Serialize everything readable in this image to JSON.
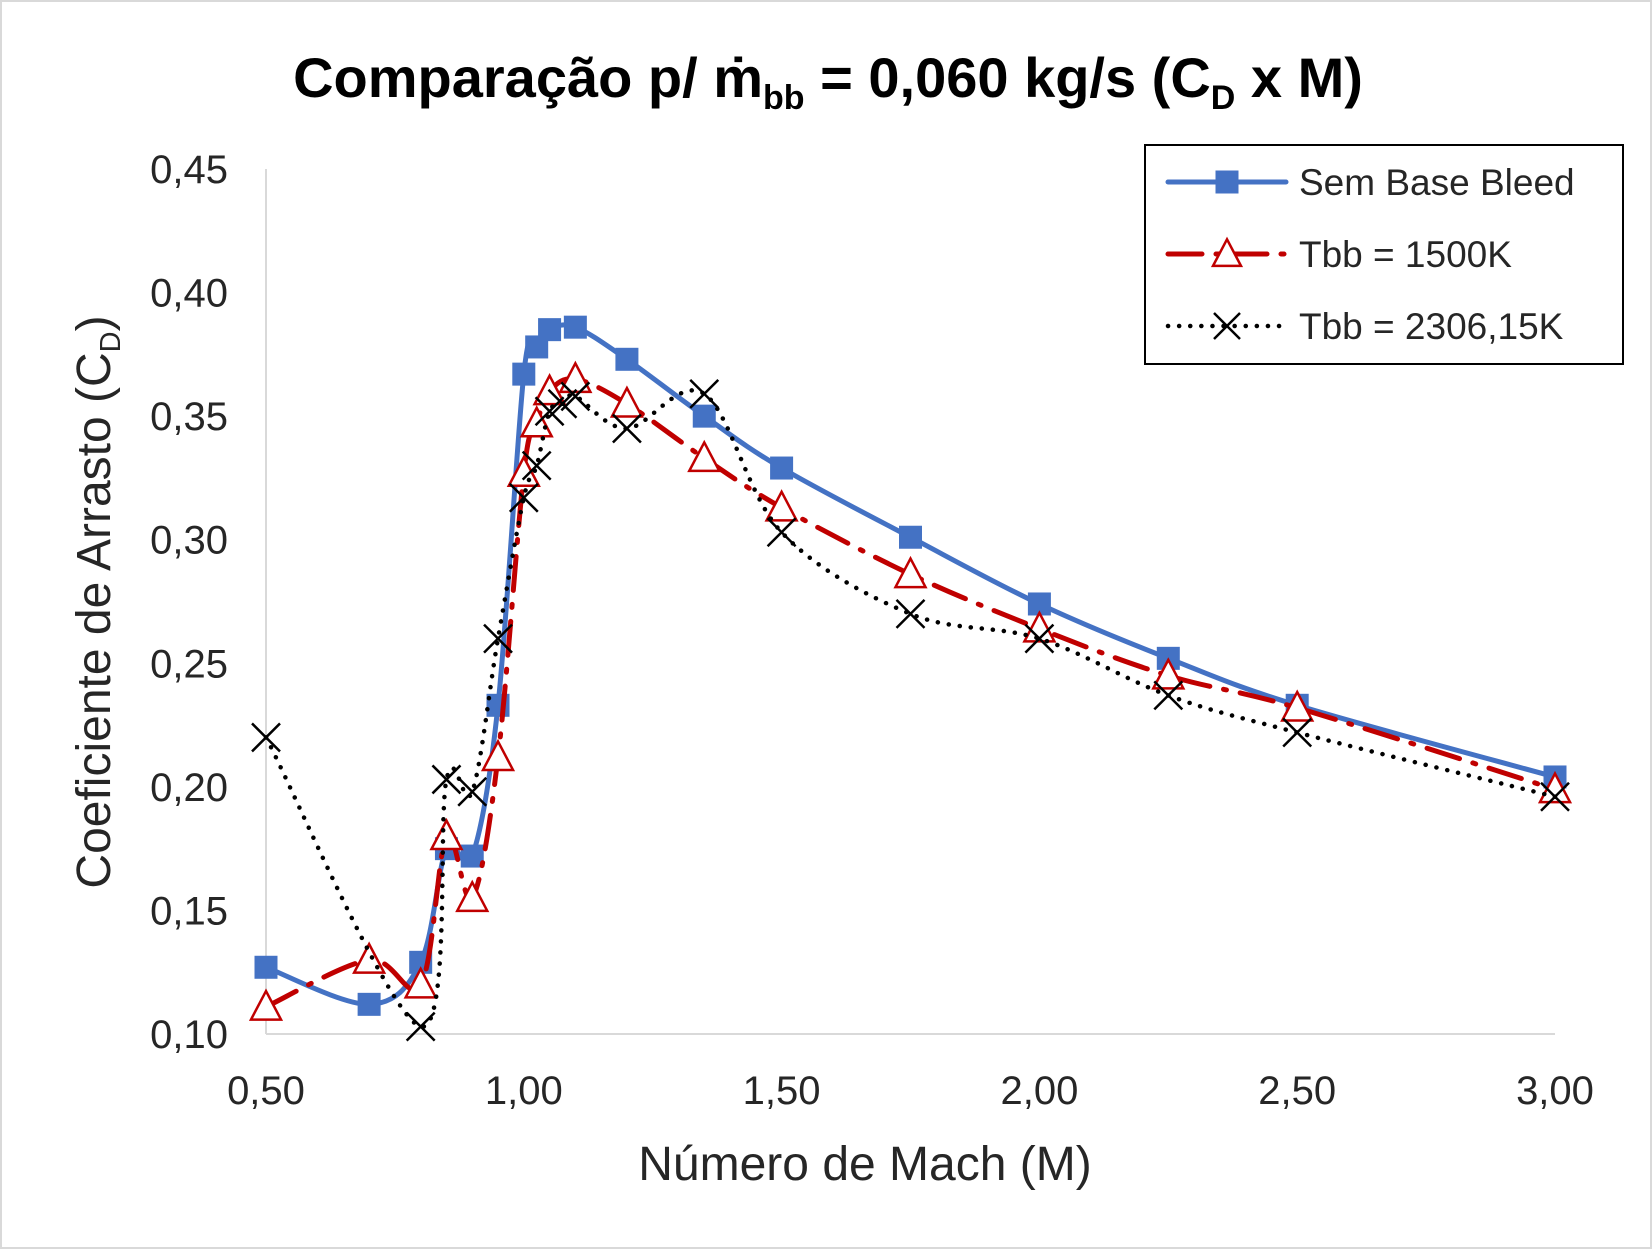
{
  "chart_data": {
    "type": "line",
    "title": {
      "prefix": "Comparação p/ ",
      "m_symbol": "ṁ",
      "m_sub": "bb",
      "middle": " = 0,060 kg/s (C",
      "c_sub": "D",
      "suffix": " x M)"
    },
    "xlabel": "Número de Mach (M)",
    "ylabel": {
      "main": "Coeficiente de Arrasto (C",
      "sub": "D",
      "end": ")"
    },
    "xlim": [
      0.5,
      3.0
    ],
    "ylim": [
      0.1,
      0.45
    ],
    "x_ticks": [
      0.5,
      1.0,
      1.5,
      2.0,
      2.5,
      3.0
    ],
    "x_tick_labels": [
      "0,50",
      "1,00",
      "1,50",
      "2,00",
      "2,50",
      "3,00"
    ],
    "y_ticks": [
      0.1,
      0.15,
      0.2,
      0.25,
      0.3,
      0.35,
      0.4,
      0.45
    ],
    "y_tick_labels": [
      "0,10",
      "0,15",
      "0,20",
      "0,25",
      "0,30",
      "0,35",
      "0,40",
      "0,45"
    ],
    "grid": false,
    "legend_position": "top-right",
    "series": [
      {
        "name": "Sem Base Bleed",
        "color": "#4472c4",
        "line_style": "solid",
        "marker": "square",
        "points": [
          [
            0.5,
            0.127
          ],
          [
            0.7,
            0.112
          ],
          [
            0.8,
            0.129
          ],
          [
            0.85,
            0.175
          ],
          [
            0.9,
            0.172
          ],
          [
            0.95,
            0.233
          ],
          [
            1.0,
            0.367
          ],
          [
            1.025,
            0.378
          ],
          [
            1.05,
            0.385
          ],
          [
            1.1,
            0.386
          ],
          [
            1.2,
            0.373
          ],
          [
            1.35,
            0.35
          ],
          [
            1.5,
            0.329
          ],
          [
            1.75,
            0.301
          ],
          [
            2.0,
            0.274
          ],
          [
            2.25,
            0.252
          ],
          [
            2.5,
            0.233
          ],
          [
            3.0,
            0.204
          ]
        ]
      },
      {
        "name": "Tbb = 1500K",
        "color": "#c00000",
        "line_style": "dash-dot",
        "marker": "triangle",
        "points": [
          [
            0.5,
            0.111
          ],
          [
            0.7,
            0.13
          ],
          [
            0.8,
            0.12
          ],
          [
            0.85,
            0.18
          ],
          [
            0.9,
            0.155
          ],
          [
            0.95,
            0.212
          ],
          [
            1.0,
            0.327
          ],
          [
            1.025,
            0.347
          ],
          [
            1.05,
            0.36
          ],
          [
            1.1,
            0.365
          ],
          [
            1.2,
            0.355
          ],
          [
            1.35,
            0.333
          ],
          [
            1.5,
            0.313
          ],
          [
            1.75,
            0.286
          ],
          [
            2.0,
            0.264
          ],
          [
            2.25,
            0.245
          ],
          [
            2.5,
            0.232
          ],
          [
            3.0,
            0.199
          ]
        ]
      },
      {
        "name": "Tbb = 2306,15K",
        "color": "#000000",
        "line_style": "dotted",
        "marker": "x",
        "points": [
          [
            0.5,
            0.22
          ],
          [
            0.8,
            0.103
          ],
          [
            0.85,
            0.203
          ],
          [
            0.9,
            0.198
          ],
          [
            0.95,
            0.26
          ],
          [
            1.0,
            0.317
          ],
          [
            1.025,
            0.33
          ],
          [
            1.05,
            0.352
          ],
          [
            1.075,
            0.355
          ],
          [
            1.1,
            0.358
          ],
          [
            1.2,
            0.345
          ],
          [
            1.35,
            0.359
          ],
          [
            1.5,
            0.303
          ],
          [
            1.75,
            0.27
          ],
          [
            2.0,
            0.26
          ],
          [
            2.25,
            0.237
          ],
          [
            2.5,
            0.222
          ],
          [
            3.0,
            0.196
          ]
        ]
      }
    ]
  }
}
